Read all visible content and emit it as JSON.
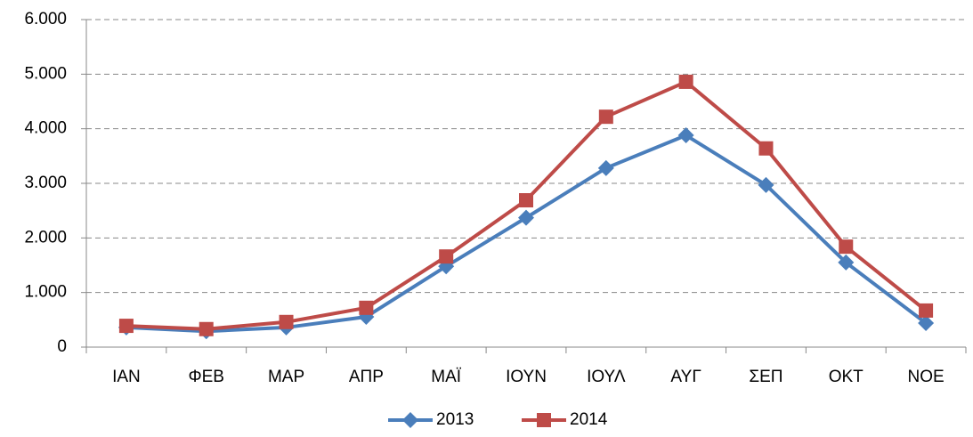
{
  "chart_data": {
    "type": "line",
    "categories": [
      "ΙΑΝ",
      "ΦΕΒ",
      "ΜΑΡ",
      "ΑΠΡ",
      "ΜΑΪ",
      "ΙΟΥΝ",
      "ΙΟΥΛ",
      "ΑΥΓ",
      "ΣΕΠ",
      "ΟΚΤ",
      "ΝΟΕ"
    ],
    "series": [
      {
        "name": "2013",
        "color": "#4a7ebb",
        "marker": "diamond",
        "values": [
          360,
          290,
          360,
          555,
          1480,
          2370,
          3280,
          3880,
          2970,
          1550,
          440
        ]
      },
      {
        "name": "2014",
        "color": "#be4b48",
        "marker": "square",
        "values": [
          390,
          330,
          460,
          720,
          1660,
          2690,
          4220,
          4860,
          3640,
          1840,
          670
        ]
      }
    ],
    "ylim": [
      0,
      6000
    ],
    "yticks": [
      0,
      {
        "value": 1000,
        "label": "1.000"
      },
      {
        "value": 2000,
        "label": "2.000"
      },
      {
        "value": 3000,
        "label": "3.000"
      },
      {
        "value": 4000,
        "label": "4.000"
      },
      {
        "value": 5000,
        "label": "5.000"
      },
      {
        "value": 6000,
        "label": "6.000"
      }
    ],
    "grid": true,
    "legend": "bottom"
  }
}
